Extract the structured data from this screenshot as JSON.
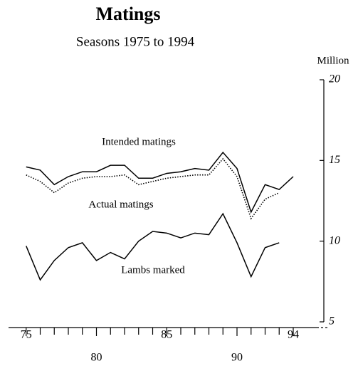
{
  "chart_data": {
    "type": "line",
    "title": "Matings",
    "subtitle": "Seasons 1975 to 1994",
    "y_label": "Million",
    "x": [
      1975,
      1976,
      1977,
      1978,
      1979,
      1980,
      1981,
      1982,
      1983,
      1984,
      1985,
      1986,
      1987,
      1988,
      1989,
      1990,
      1991,
      1992,
      1993,
      1994
    ],
    "series": [
      {
        "name": "Intended matings",
        "color": "#000000",
        "dash": "solid",
        "values": [
          14.6,
          14.4,
          13.5,
          14.0,
          14.3,
          14.3,
          14.7,
          14.7,
          13.9,
          13.9,
          14.2,
          14.3,
          14.5,
          14.4,
          15.5,
          14.5,
          11.8,
          13.5,
          13.2,
          14.0
        ]
      },
      {
        "name": "Actual matings",
        "color": "#000000",
        "dash": "dotted",
        "values": [
          14.1,
          13.7,
          13.0,
          13.6,
          13.9,
          14.0,
          14.0,
          14.1,
          13.5,
          13.7,
          13.9,
          14.0,
          14.1,
          14.1,
          15.1,
          14.0,
          11.4,
          12.6,
          13.0,
          null
        ]
      },
      {
        "name": "Lambs marked",
        "color": "#000000",
        "dash": "solid",
        "values": [
          9.7,
          7.6,
          8.8,
          9.6,
          9.9,
          8.8,
          9.3,
          8.9,
          10.0,
          10.6,
          10.5,
          10.2,
          10.5,
          10.4,
          11.7,
          9.9,
          7.8,
          9.6,
          9.9,
          null
        ]
      }
    ],
    "xlim": [
      1974,
      1996
    ],
    "xticks": [
      {
        "value": 1975,
        "label": "75"
      },
      {
        "value": 1980,
        "label": "80"
      },
      {
        "value": 1985,
        "label": "85"
      },
      {
        "value": 1990,
        "label": "90"
      },
      {
        "value": 1994,
        "label": "94"
      }
    ],
    "xminorticks": [
      1976,
      1977,
      1978,
      1979,
      1981,
      1982,
      1983,
      1984,
      1986,
      1987,
      1988,
      1989,
      1991,
      1992,
      1993
    ],
    "ylim": [
      5,
      20
    ],
    "yticks": [
      5,
      10,
      15,
      20
    ],
    "y_axis_side": "right"
  }
}
